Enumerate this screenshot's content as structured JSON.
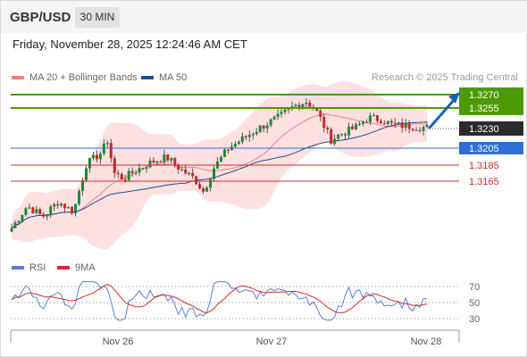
{
  "header": {
    "symbol": "GBP/USD",
    "timeframe": "30 MIN"
  },
  "datetime": "Friday, November 28, 2025 12:24:46 AM CET",
  "legend": {
    "ma20": {
      "label": "MA 20 + Bollinger Bands",
      "color": "#f08080"
    },
    "ma50": {
      "label": "MA 50",
      "color": "#1f4e8c"
    }
  },
  "copyright": "Research © 2025 Trading Central",
  "levels": [
    {
      "value": "1.3270",
      "kind": "resistance",
      "color": "#4e9a06"
    },
    {
      "value": "1.3255",
      "kind": "resistance",
      "color": "#4e9a06"
    },
    {
      "value": "1.3230",
      "kind": "current",
      "color": "#333333"
    },
    {
      "value": "1.3205",
      "kind": "pivot",
      "color": "#2f6fd6"
    },
    {
      "value": "1.3185",
      "kind": "support",
      "color": "#d12b2b"
    },
    {
      "value": "1.3165",
      "kind": "support",
      "color": "#d12b2b"
    }
  ],
  "indicator_legend": {
    "rsi": {
      "label": "RSI",
      "color": "#5b7fd6"
    },
    "ma9": {
      "label": "9MA",
      "color": "#d12b2b"
    }
  },
  "rsi_levels": [
    "70",
    "50",
    "30"
  ],
  "x_axis": {
    "labels": [
      "Nov 26",
      "Nov 27",
      "Nov 28"
    ]
  },
  "colors": {
    "bull": "#1a8a3a",
    "bear": "#c62828",
    "band": "#fde0e0",
    "arrow": "#1e5fb4"
  }
}
